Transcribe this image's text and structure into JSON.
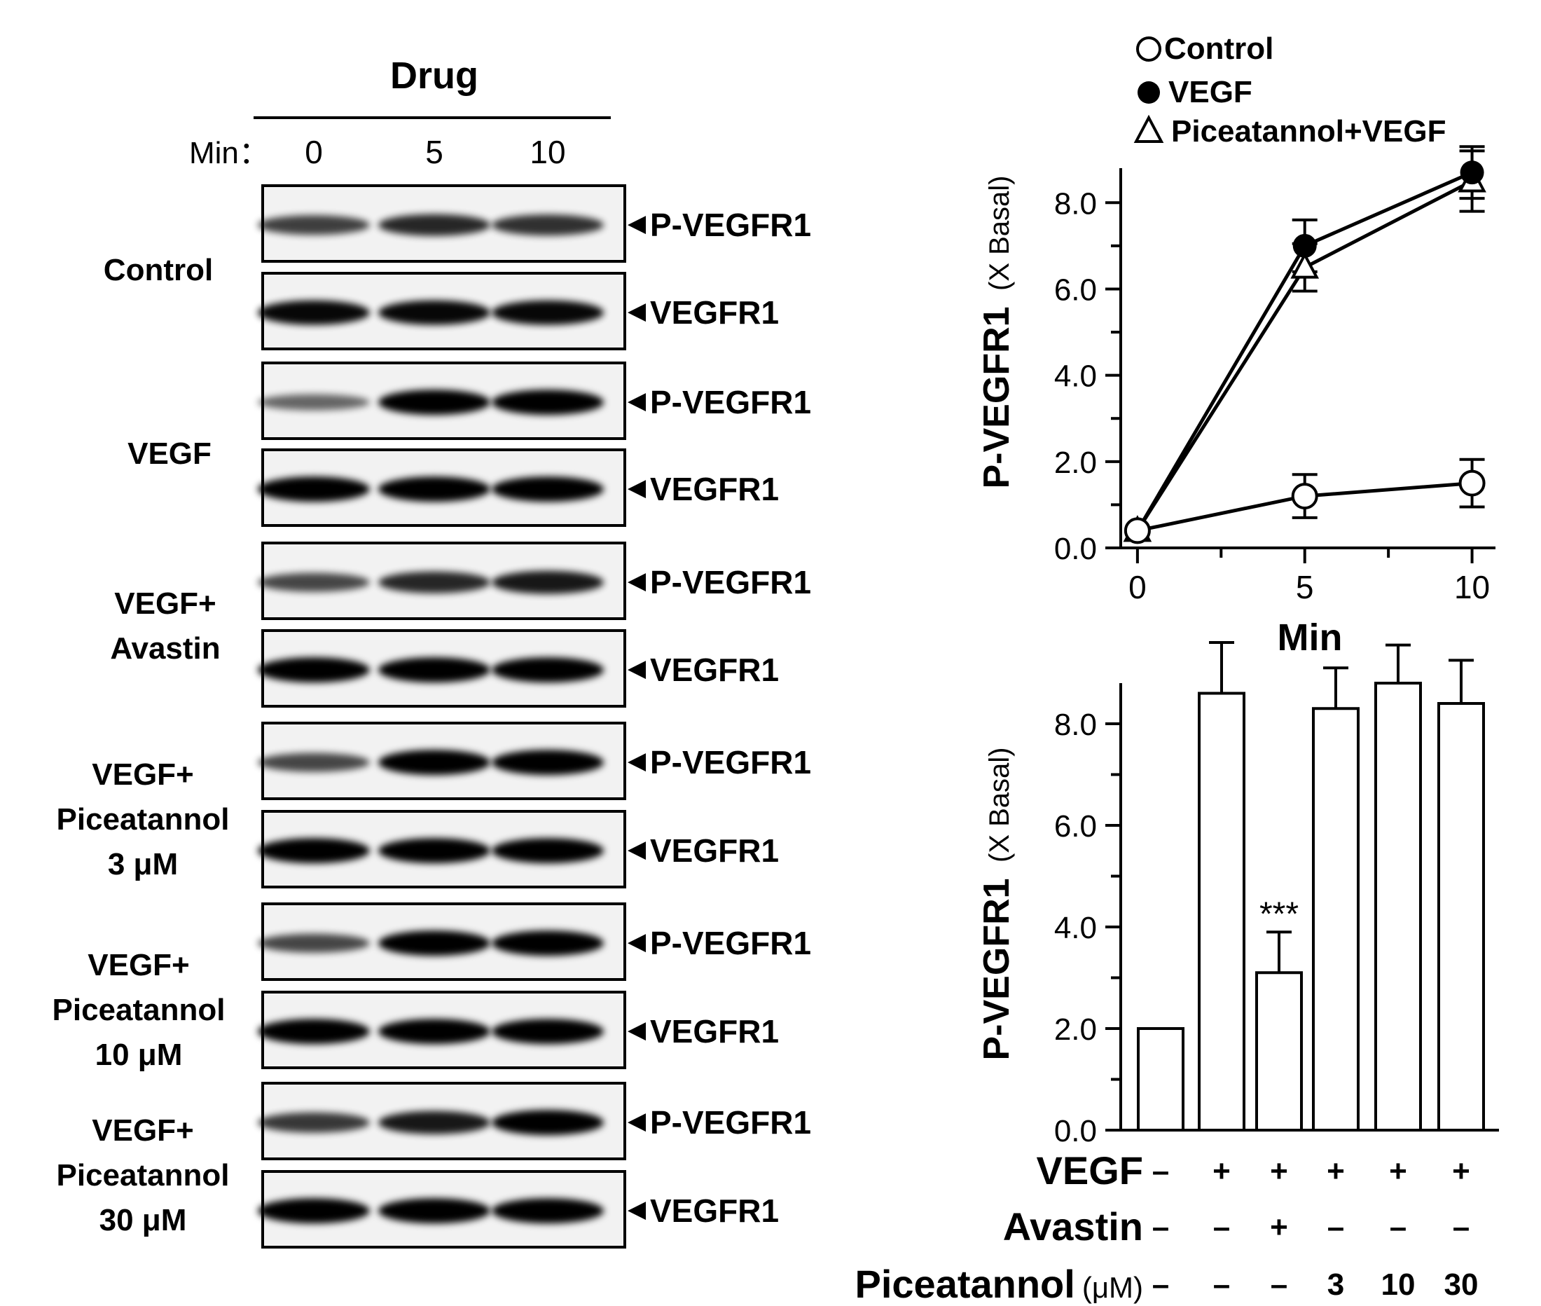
{
  "blot": {
    "drug_label": "Drug",
    "min_label": "Min：",
    "lanes": [
      "0",
      "5",
      "10"
    ],
    "band_label_phospho": "P-VEGFR1",
    "band_label_total": "VEGFR1",
    "groups": [
      {
        "lines": [
          "Control"
        ]
      },
      {
        "lines": [
          "VEGF"
        ]
      },
      {
        "lines": [
          "VEGF+",
          "Avastin"
        ]
      },
      {
        "lines": [
          "VEGF+",
          "Piceatannol",
          "3 μM"
        ]
      },
      {
        "lines": [
          "VEGF+",
          "Piceatannol",
          "10 μM"
        ]
      },
      {
        "lines": [
          "VEGF+",
          "Piceatannol",
          "30 μM"
        ]
      }
    ]
  },
  "chart_data": [
    {
      "type": "line",
      "ylabel": "P-VEGFR1",
      "ylabel_unit": "(X Basal)",
      "xlabel": "Min",
      "x": [
        0,
        5,
        10
      ],
      "xticks": [
        "0",
        "5",
        "10"
      ],
      "yticks": [
        "0.0",
        "2.0",
        "4.0",
        "6.0",
        "8.0"
      ],
      "ylim": [
        0,
        8.8
      ],
      "xlim": [
        -0.5,
        10.7
      ],
      "legend_position": "top",
      "series": [
        {
          "name": "Control",
          "marker": "open-circle",
          "values": [
            0.4,
            1.2,
            1.5
          ],
          "errors": [
            0,
            0.5,
            0.55
          ]
        },
        {
          "name": "VEGF",
          "marker": "filled-circle",
          "values": [
            0.4,
            7.0,
            8.7
          ],
          "errors": [
            0,
            0.6,
            0.6
          ]
        },
        {
          "name": "Piceatannol+VEGF",
          "marker": "open-triangle",
          "values": [
            0.4,
            6.5,
            8.5
          ],
          "errors": [
            0,
            0.55,
            0.7
          ]
        }
      ]
    },
    {
      "type": "bar",
      "ylabel": "P-VEGFR1",
      "ylabel_unit": "(X Basal)",
      "yticks": [
        "0.0",
        "2.0",
        "4.0",
        "6.0",
        "8.0"
      ],
      "ylim": [
        0,
        8.8
      ],
      "values": [
        2.0,
        8.6,
        3.1,
        8.3,
        8.8,
        8.4
      ],
      "errors": [
        0,
        1.0,
        0.8,
        0.8,
        0.75,
        0.85
      ],
      "annotations": [
        {
          "bar": 2,
          "text": "***"
        }
      ],
      "conditions": [
        {
          "label": "VEGF",
          "unit": "",
          "values": [
            "–",
            "+",
            "+",
            "+",
            "+",
            "+"
          ]
        },
        {
          "label": "Avastin",
          "unit": "",
          "values": [
            "–",
            "–",
            "+",
            "–",
            "–",
            "–"
          ]
        },
        {
          "label": "Piceatannol",
          "unit": "(μM)",
          "values": [
            "–",
            "–",
            "–",
            "3",
            "10",
            "30"
          ]
        }
      ]
    }
  ]
}
